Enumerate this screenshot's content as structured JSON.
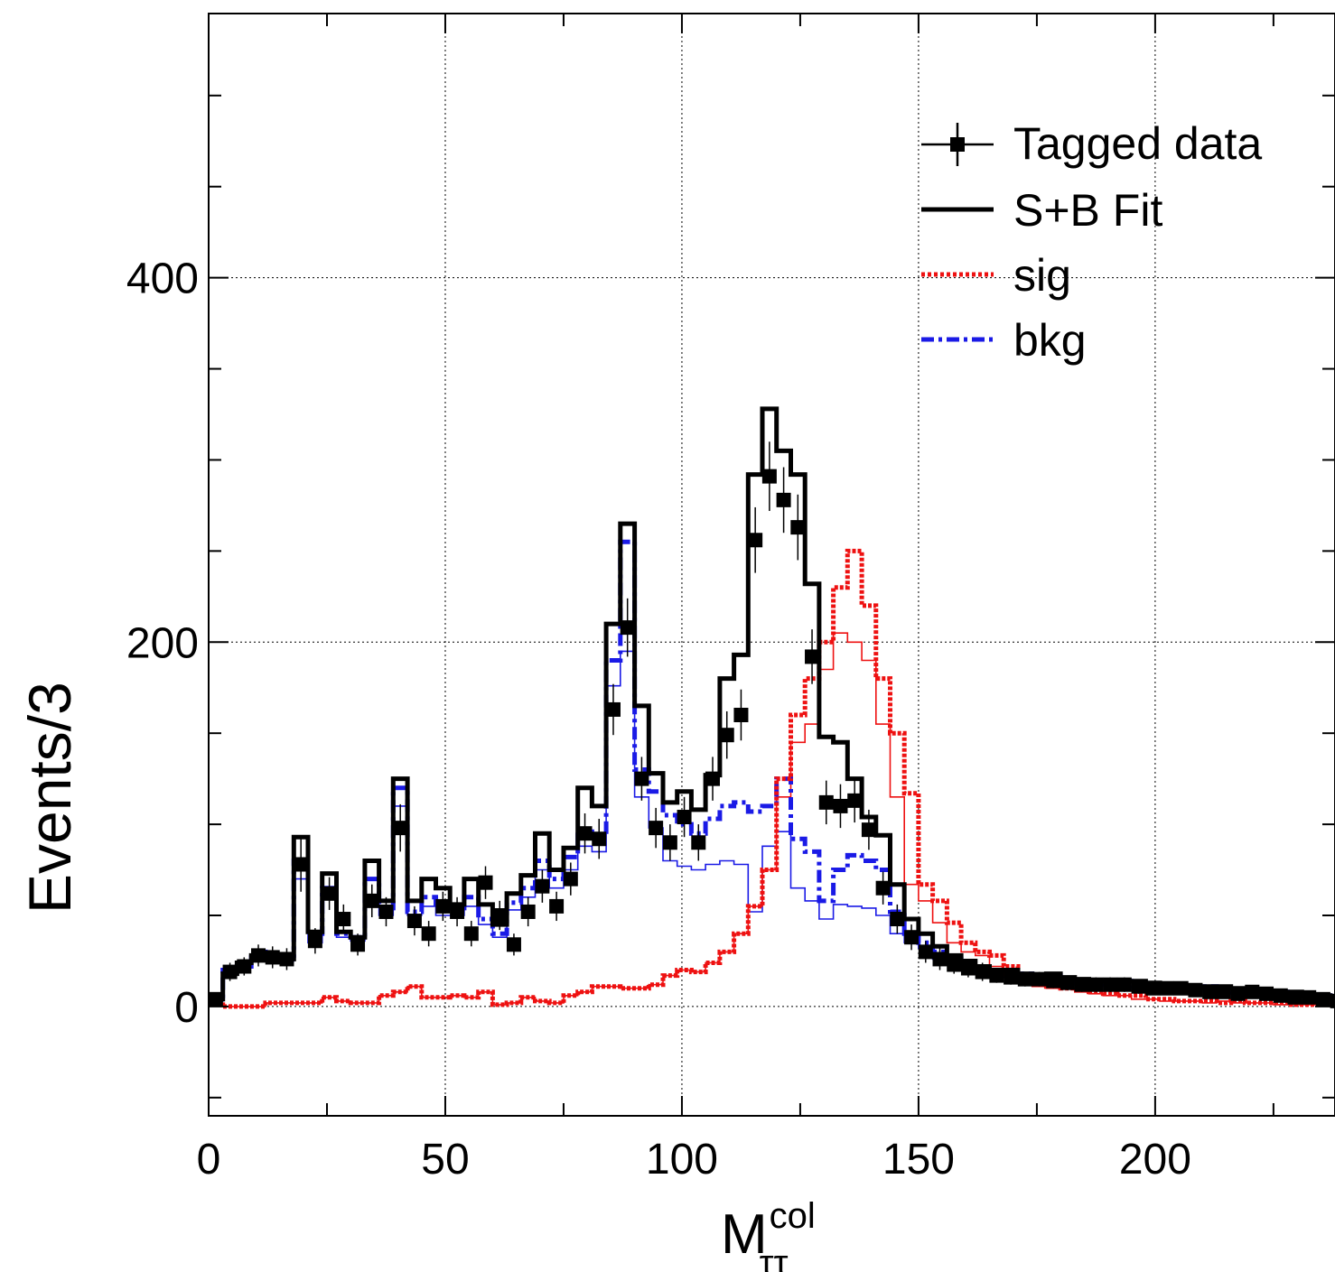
{
  "chart_data": {
    "type": "line",
    "xlabel": "M",
    "xlabel_sup": "col",
    "xlabel_sub": "ττ",
    "ylabel": "Events/3",
    "xlim": [
      0,
      238
    ],
    "ylim": [
      -60,
      545
    ],
    "bin_width": 3,
    "x_ticks": [
      0,
      50,
      100,
      150,
      200
    ],
    "y_ticks": [
      0,
      200,
      400
    ],
    "grid": true,
    "legend_position": "top-right",
    "legend": [
      {
        "key": "data",
        "label": "Tagged data"
      },
      {
        "key": "fit",
        "label": "S+B Fit"
      },
      {
        "key": "sig",
        "label": "sig"
      },
      {
        "key": "bkg",
        "label": "bkg"
      }
    ],
    "series": [
      {
        "key": "fit",
        "name": "S+B Fit",
        "color": "#000000",
        "style": "solid-thick",
        "x_start": 0,
        "values": [
          4,
          18,
          24,
          28,
          27,
          26,
          93,
          41,
          73,
          41,
          38,
          80,
          58,
          125,
          58,
          70,
          65,
          56,
          70,
          56,
          45,
          62,
          72,
          95,
          75,
          87,
          120,
          110,
          210,
          265,
          165,
          128,
          112,
          118,
          108,
          127,
          180,
          193,
          292,
          328,
          305,
          292,
          232,
          148,
          145,
          125,
          104,
          94,
          67,
          48,
          40,
          33,
          28,
          25,
          22,
          20,
          20,
          18,
          16,
          18,
          16,
          15,
          14,
          14,
          14,
          14,
          13,
          12,
          11,
          10,
          11,
          11,
          10,
          9,
          8,
          8,
          8,
          6,
          6,
          5
        ]
      },
      {
        "key": "sig",
        "name": "sig",
        "color": "#ee1111",
        "style": "dotted",
        "x_start": 0,
        "values": [
          1,
          0,
          0,
          0,
          2,
          2,
          2,
          2,
          5,
          3,
          2,
          2,
          6,
          8,
          11,
          5,
          5,
          6,
          5,
          8,
          1,
          2,
          5,
          3,
          2,
          6,
          8,
          11,
          11,
          10,
          10,
          12,
          17,
          20,
          19,
          24,
          30,
          40,
          55,
          75,
          125,
          160,
          180,
          200,
          230,
          250,
          220,
          180,
          150,
          117,
          67,
          58,
          46,
          35,
          30,
          28,
          22,
          17,
          15,
          11,
          10,
          10,
          8,
          7,
          6,
          6,
          4,
          4,
          3,
          3,
          3,
          2,
          3,
          2,
          2,
          2,
          1,
          1,
          1,
          1
        ]
      },
      {
        "key": "bkg",
        "name": "bkg",
        "color": "#1a1ae6",
        "style": "dashdot",
        "x_start": 0,
        "values": [
          3,
          20,
          22,
          30,
          28,
          28,
          80,
          40,
          65,
          40,
          38,
          70,
          54,
          120,
          52,
          60,
          55,
          54,
          60,
          48,
          40,
          57,
          65,
          80,
          70,
          82,
          96,
          93,
          190,
          255,
          130,
          118,
          105,
          100,
          95,
          103,
          110,
          112,
          107,
          110,
          125,
          92,
          85,
          58,
          75,
          83,
          80,
          75,
          52,
          40,
          35,
          30,
          26,
          23,
          21,
          20,
          19,
          18,
          16,
          17,
          15,
          14,
          14,
          14,
          14,
          13,
          12,
          11,
          10,
          10,
          11,
          10,
          9,
          8,
          7,
          8,
          7,
          6,
          6,
          5
        ]
      },
      {
        "key": "bkg_thin",
        "color": "#1a1ae6",
        "style": "thin",
        "x_start": 0,
        "values": [
          3,
          18,
          22,
          27,
          26,
          25,
          70,
          35,
          60,
          38,
          36,
          60,
          50,
          110,
          50,
          55,
          50,
          50,
          55,
          45,
          38,
          53,
          60,
          75,
          65,
          75,
          88,
          85,
          176,
          195,
          115,
          98,
          80,
          77,
          75,
          78,
          80,
          78,
          52,
          88,
          96,
          65,
          58,
          48,
          56,
          55,
          54,
          50,
          40,
          35,
          32,
          26,
          23,
          20,
          18,
          17,
          16,
          15,
          14,
          14,
          13,
          12,
          12,
          11,
          11,
          10,
          10,
          9,
          8,
          8,
          8,
          8,
          7,
          6,
          6,
          6,
          5,
          5,
          4,
          3
        ]
      },
      {
        "key": "sig_thin",
        "color": "#ee1111",
        "style": "thin",
        "x_start": 0,
        "values": [
          1,
          0,
          0,
          0,
          2,
          2,
          2,
          2,
          5,
          3,
          2,
          2,
          6,
          8,
          11,
          5,
          5,
          6,
          5,
          8,
          1,
          2,
          5,
          3,
          2,
          6,
          8,
          11,
          11,
          10,
          10,
          12,
          17,
          20,
          19,
          24,
          30,
          40,
          55,
          75,
          115,
          145,
          155,
          185,
          205,
          200,
          190,
          155,
          115,
          67,
          58,
          46,
          35,
          30,
          28,
          22,
          17,
          15,
          11,
          10,
          10,
          8,
          7,
          6,
          6,
          4,
          4,
          3,
          3,
          3,
          2,
          3,
          2,
          2,
          2,
          1,
          1,
          1,
          1,
          1
        ]
      },
      {
        "key": "data",
        "name": "Tagged data",
        "color": "#000000",
        "style": "markers",
        "x_start": 1.5,
        "values": [
          4,
          19,
          22,
          28,
          27,
          26,
          78,
          36,
          62,
          48,
          34,
          58,
          52,
          98,
          47,
          40,
          55,
          52,
          40,
          68,
          50,
          34,
          52,
          66,
          55,
          70,
          95,
          92,
          163,
          208,
          125,
          98,
          90,
          104,
          90,
          125,
          149,
          160,
          256,
          291,
          278,
          263,
          192,
          112,
          110,
          113,
          97,
          65,
          48,
          38,
          30,
          26,
          23,
          21,
          19,
          17,
          16,
          15,
          15,
          14,
          13,
          12,
          12,
          12,
          12,
          11,
          10,
          10,
          10,
          9,
          8,
          8,
          7,
          8,
          7,
          6,
          5,
          5,
          4,
          3
        ],
        "errors": [
          3,
          5,
          5,
          6,
          6,
          6,
          15,
          7,
          9,
          8,
          6,
          9,
          8,
          13,
          8,
          7,
          8,
          8,
          7,
          9,
          8,
          6,
          8,
          9,
          8,
          9,
          11,
          11,
          14,
          16,
          12,
          11,
          10,
          11,
          10,
          12,
          13,
          14,
          18,
          19,
          18,
          18,
          15,
          12,
          12,
          12,
          11,
          9,
          8,
          7,
          6,
          6,
          5,
          5,
          5,
          4,
          4,
          4,
          4,
          4,
          4,
          4,
          4,
          4,
          4,
          4,
          3,
          3,
          3,
          3,
          3,
          3,
          3,
          3,
          3,
          3,
          3,
          3,
          3,
          3
        ]
      }
    ]
  }
}
